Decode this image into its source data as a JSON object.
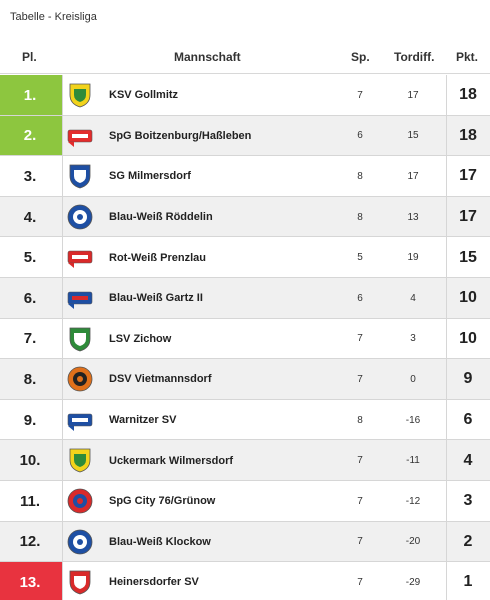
{
  "title": "Tabelle - Kreisliga",
  "header": {
    "rank": "Pl.",
    "team": "Mannschaft",
    "played": "Sp.",
    "goal_diff": "Tordiff.",
    "points": "Pkt."
  },
  "rows": [
    {
      "rank": "1.",
      "team": "KSV Gollmitz",
      "played": "7",
      "goal_diff": "17",
      "points": "18",
      "status": "promotion",
      "crest": {
        "shape": "shield",
        "primary": "#f2d31b",
        "secondary": "#2e8b3a"
      }
    },
    {
      "rank": "2.",
      "team": "SpG Boitzenburg/Haßleben",
      "played": "6",
      "goal_diff": "15",
      "points": "18",
      "status": "promotion",
      "crest": {
        "shape": "banner",
        "primary": "#e32b2b",
        "secondary": "#ffffff"
      }
    },
    {
      "rank": "3.",
      "team": "SG Milmersdorf",
      "played": "8",
      "goal_diff": "17",
      "points": "17",
      "status": "none",
      "crest": {
        "shape": "shield",
        "primary": "#1e4fa3",
        "secondary": "#ffffff"
      }
    },
    {
      "rank": "4.",
      "team": "Blau-Weiß Röddelin",
      "played": "8",
      "goal_diff": "13",
      "points": "17",
      "status": "none",
      "crest": {
        "shape": "circle",
        "primary": "#1e4fa3",
        "secondary": "#ffffff"
      }
    },
    {
      "rank": "5.",
      "team": "Rot-Weiß Prenzlau",
      "played": "5",
      "goal_diff": "19",
      "points": "15",
      "status": "none",
      "crest": {
        "shape": "banner",
        "primary": "#d92a2a",
        "secondary": "#ffffff"
      }
    },
    {
      "rank": "6.",
      "team": "Blau-Weiß Gartz II",
      "played": "6",
      "goal_diff": "4",
      "points": "10",
      "status": "none",
      "crest": {
        "shape": "banner",
        "primary": "#1e4fa3",
        "secondary": "#d92a2a"
      }
    },
    {
      "rank": "7.",
      "team": "LSV Zichow",
      "played": "7",
      "goal_diff": "3",
      "points": "10",
      "status": "none",
      "crest": {
        "shape": "shield",
        "primary": "#2e8b3a",
        "secondary": "#ffffff"
      }
    },
    {
      "rank": "8.",
      "team": "DSV Vietmannsdorf",
      "played": "7",
      "goal_diff": "0",
      "points": "9",
      "status": "none",
      "crest": {
        "shape": "circle",
        "primary": "#e0701a",
        "secondary": "#222222"
      }
    },
    {
      "rank": "9.",
      "team": "Warnitzer SV",
      "played": "8",
      "goal_diff": "-16",
      "points": "6",
      "status": "none",
      "crest": {
        "shape": "banner",
        "primary": "#1e4fa3",
        "secondary": "#ffffff"
      }
    },
    {
      "rank": "10.",
      "team": "Uckermark Wilmersdorf",
      "played": "7",
      "goal_diff": "-11",
      "points": "4",
      "status": "none",
      "crest": {
        "shape": "shield",
        "primary": "#f2d31b",
        "secondary": "#2e8b3a"
      }
    },
    {
      "rank": "11.",
      "team": "SpG City 76/Grünow",
      "played": "7",
      "goal_diff": "-12",
      "points": "3",
      "status": "none",
      "crest": {
        "shape": "circle",
        "primary": "#d92a2a",
        "secondary": "#1e4fa3"
      }
    },
    {
      "rank": "12.",
      "team": "Blau-Weiß Klockow",
      "played": "7",
      "goal_diff": "-20",
      "points": "2",
      "status": "none",
      "crest": {
        "shape": "circle",
        "primary": "#1e4fa3",
        "secondary": "#ffffff"
      }
    },
    {
      "rank": "13.",
      "team": "Heinersdorfer SV",
      "played": "7",
      "goal_diff": "-29",
      "points": "1",
      "status": "relegation",
      "crest": {
        "shape": "shield",
        "primary": "#d92a2a",
        "secondary": "#ffffff"
      }
    }
  ],
  "colors": {
    "promotion": "#8dc63f",
    "relegation": "#e8333f",
    "row_alt": "#f0f0f0",
    "divider": "#d6d6d6"
  }
}
